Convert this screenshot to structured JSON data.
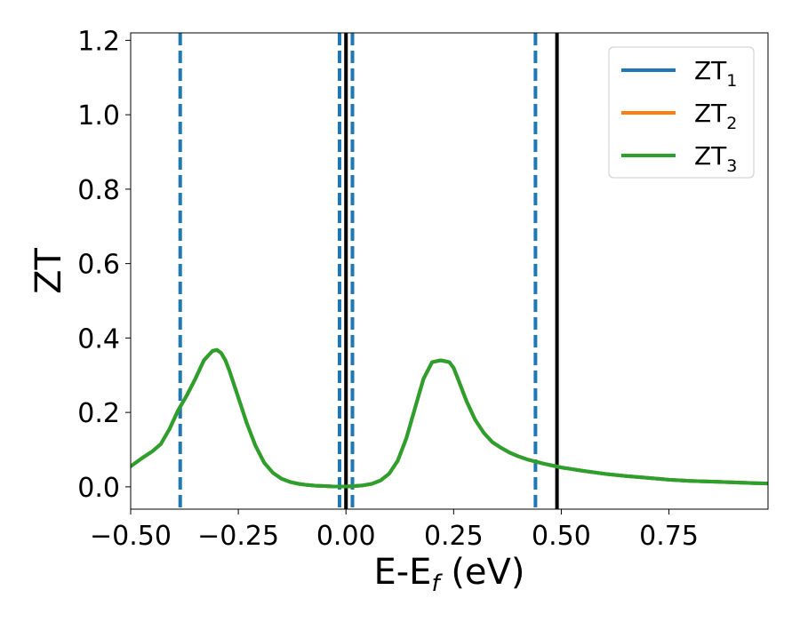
{
  "chart_data": {
    "type": "line",
    "xlabel": "E-E",
    "xlabel_sub": "f",
    "xlabel_unit": " (eV)",
    "ylabel": "ZT",
    "xlim": [
      -0.5,
      0.98
    ],
    "ylim": [
      -0.06,
      1.22
    ],
    "xticks": [
      -0.5,
      -0.25,
      0.0,
      0.25,
      0.5,
      0.75
    ],
    "xtick_labels": [
      "−0.50",
      "−0.25",
      "0.00",
      "0.25",
      "0.50",
      "0.75"
    ],
    "yticks": [
      0.0,
      0.2,
      0.4,
      0.6,
      0.8,
      1.0,
      1.2
    ],
    "ytick_labels": [
      "0.0",
      "0.2",
      "0.4",
      "0.6",
      "0.8",
      "1.0",
      "1.2"
    ],
    "grid": false,
    "legend_position": "top-right",
    "x": [
      -0.5,
      -0.47,
      -0.45,
      -0.43,
      -0.41,
      -0.39,
      -0.37,
      -0.35,
      -0.33,
      -0.31,
      -0.3,
      -0.29,
      -0.28,
      -0.27,
      -0.25,
      -0.23,
      -0.21,
      -0.19,
      -0.17,
      -0.15,
      -0.13,
      -0.11,
      -0.09,
      -0.07,
      -0.05,
      -0.03,
      -0.01,
      0.0,
      0.02,
      0.04,
      0.06,
      0.08,
      0.1,
      0.12,
      0.14,
      0.16,
      0.18,
      0.2,
      0.22,
      0.24,
      0.25,
      0.26,
      0.28,
      0.3,
      0.32,
      0.34,
      0.36,
      0.38,
      0.4,
      0.42,
      0.44,
      0.46,
      0.48,
      0.5,
      0.55,
      0.6,
      0.65,
      0.7,
      0.75,
      0.8,
      0.85,
      0.9,
      0.95,
      0.98
    ],
    "series": [
      {
        "name": "ZT",
        "name_sub": "1",
        "color": "#1f77b4",
        "values": [
          0.055,
          0.08,
          0.095,
          0.115,
          0.155,
          0.205,
          0.245,
          0.29,
          0.34,
          0.365,
          0.368,
          0.36,
          0.34,
          0.31,
          0.24,
          0.17,
          0.11,
          0.065,
          0.038,
          0.022,
          0.013,
          0.008,
          0.005,
          0.003,
          0.002,
          0.001,
          0.001,
          0.001,
          0.002,
          0.004,
          0.008,
          0.017,
          0.035,
          0.07,
          0.13,
          0.21,
          0.29,
          0.335,
          0.34,
          0.335,
          0.32,
          0.29,
          0.23,
          0.18,
          0.145,
          0.12,
          0.105,
          0.092,
          0.082,
          0.074,
          0.068,
          0.062,
          0.057,
          0.052,
          0.043,
          0.035,
          0.029,
          0.024,
          0.019,
          0.016,
          0.014,
          0.012,
          0.01,
          0.009
        ]
      },
      {
        "name": "ZT",
        "name_sub": "2",
        "color": "#ff7f0e",
        "values": [
          0.055,
          0.08,
          0.095,
          0.115,
          0.155,
          0.205,
          0.245,
          0.29,
          0.34,
          0.365,
          0.368,
          0.36,
          0.34,
          0.31,
          0.24,
          0.17,
          0.11,
          0.065,
          0.038,
          0.022,
          0.013,
          0.008,
          0.005,
          0.003,
          0.002,
          0.001,
          0.001,
          0.001,
          0.002,
          0.004,
          0.008,
          0.017,
          0.035,
          0.07,
          0.13,
          0.21,
          0.29,
          0.335,
          0.34,
          0.335,
          0.32,
          0.29,
          0.23,
          0.18,
          0.145,
          0.12,
          0.105,
          0.092,
          0.082,
          0.074,
          0.068,
          0.062,
          0.057,
          0.052,
          0.043,
          0.035,
          0.029,
          0.024,
          0.019,
          0.016,
          0.014,
          0.012,
          0.01,
          0.009
        ]
      },
      {
        "name": "ZT",
        "name_sub": "3",
        "color": "#2ca02c",
        "values": [
          0.055,
          0.08,
          0.095,
          0.115,
          0.155,
          0.205,
          0.245,
          0.29,
          0.34,
          0.365,
          0.368,
          0.36,
          0.34,
          0.31,
          0.24,
          0.17,
          0.11,
          0.065,
          0.038,
          0.022,
          0.013,
          0.008,
          0.005,
          0.003,
          0.002,
          0.001,
          0.001,
          0.001,
          0.002,
          0.004,
          0.008,
          0.017,
          0.035,
          0.07,
          0.13,
          0.21,
          0.29,
          0.335,
          0.34,
          0.335,
          0.32,
          0.29,
          0.23,
          0.18,
          0.145,
          0.12,
          0.105,
          0.092,
          0.082,
          0.074,
          0.068,
          0.062,
          0.057,
          0.052,
          0.043,
          0.035,
          0.029,
          0.024,
          0.019,
          0.016,
          0.014,
          0.012,
          0.01,
          0.009
        ]
      }
    ],
    "vlines": [
      {
        "x": -0.385,
        "style": "dashed",
        "color": "#1f77b4"
      },
      {
        "x": -0.015,
        "style": "dashed",
        "color": "#1f77b4"
      },
      {
        "x": 0.015,
        "style": "dashed",
        "color": "#1f77b4"
      },
      {
        "x": 0.44,
        "style": "dashed",
        "color": "#1f77b4"
      },
      {
        "x": 0.0,
        "style": "solid",
        "color": "#000000"
      },
      {
        "x": 0.49,
        "style": "solid",
        "color": "#000000"
      }
    ]
  }
}
